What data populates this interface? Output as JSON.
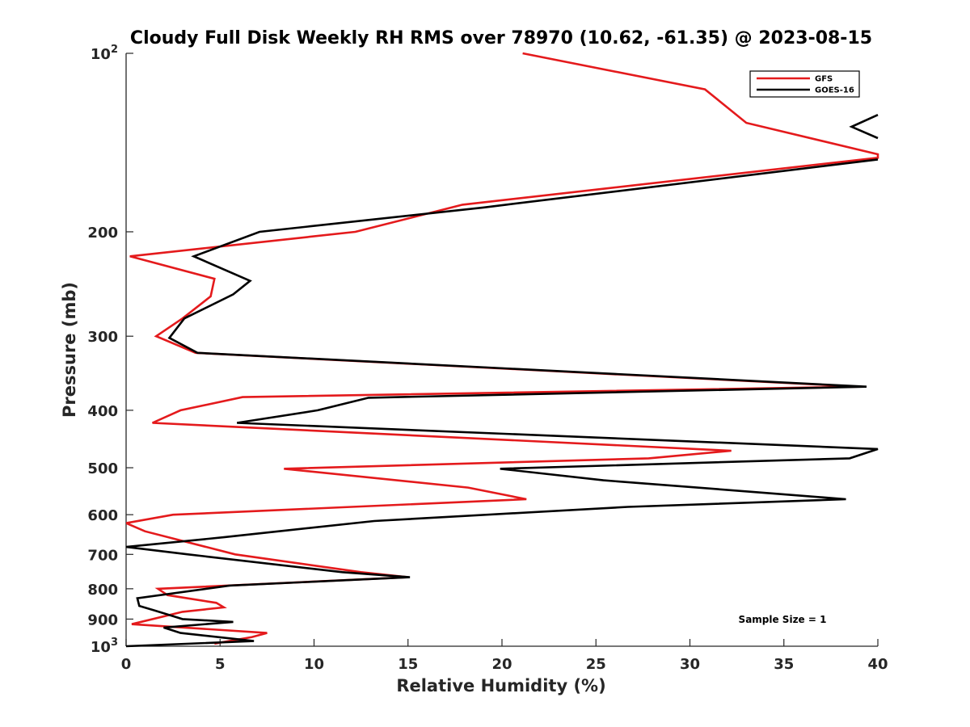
{
  "chart_data": {
    "type": "line",
    "title": "Cloudy Full Disk Weekly RH RMS over 78970 (10.62, -61.35) @ 2023-08-15",
    "xlabel": "Relative Humidity (%)",
    "ylabel": "Pressure (mb)",
    "xlim": [
      0,
      40
    ],
    "ylim": [
      100,
      1000
    ],
    "yscale": "log",
    "y_reversed": true,
    "xticks": [
      0,
      5,
      10,
      15,
      20,
      25,
      30,
      35,
      40
    ],
    "yticks": [
      {
        "value": 100,
        "base": "10",
        "exp": "2"
      },
      {
        "value": 200,
        "label": "200"
      },
      {
        "value": 300,
        "label": "300"
      },
      {
        "value": 400,
        "label": "400"
      },
      {
        "value": 500,
        "label": "500"
      },
      {
        "value": 600,
        "label": "600"
      },
      {
        "value": 700,
        "label": "700"
      },
      {
        "value": 800,
        "label": "800"
      },
      {
        "value": 900,
        "label": "900"
      },
      {
        "value": 1000,
        "base": "10",
        "exp": "3"
      }
    ],
    "grid": false,
    "legend_position": "top-right",
    "annotation": "Sample Size = 1",
    "series": [
      {
        "name": "GFS",
        "color": "#e41a1c",
        "points": [
          [
            21.1,
            100
          ],
          [
            30.8,
            115
          ],
          [
            33.0,
            131
          ],
          [
            40.0,
            148
          ],
          [
            40.0,
            150
          ],
          [
            17.9,
            180
          ],
          [
            12.2,
            200
          ],
          [
            0.2,
            220
          ],
          [
            4.7,
            240
          ],
          [
            4.5,
            257
          ],
          [
            3.0,
            280
          ],
          [
            1.6,
            300
          ],
          [
            3.7,
            320
          ],
          [
            39.0,
            365
          ],
          [
            6.2,
            380
          ],
          [
            2.9,
            400
          ],
          [
            1.4,
            420
          ],
          [
            32.2,
            468
          ],
          [
            27.8,
            482
          ],
          [
            8.4,
            502
          ],
          [
            18.2,
            540
          ],
          [
            21.3,
            565
          ],
          [
            2.5,
            600
          ],
          [
            0.0,
            620
          ],
          [
            1.0,
            640
          ],
          [
            5.8,
            700
          ],
          [
            12.5,
            750
          ],
          [
            15.0,
            765
          ],
          [
            1.7,
            800
          ],
          [
            2.2,
            820
          ],
          [
            4.8,
            845
          ],
          [
            5.2,
            860
          ],
          [
            3.0,
            875
          ],
          [
            0.3,
            918
          ],
          [
            7.5,
            950
          ],
          [
            6.7,
            965
          ],
          [
            4.7,
            990
          ]
        ]
      },
      {
        "name": "GOES-16",
        "color": "#000000",
        "points_upper": [
          [
            40.0,
            127
          ],
          [
            38.6,
            133
          ],
          [
            40.0,
            139
          ]
        ],
        "points": [
          [
            40.0,
            151
          ],
          [
            19.0,
            182
          ],
          [
            7.1,
            200
          ],
          [
            3.6,
            220
          ],
          [
            6.6,
            242
          ],
          [
            5.7,
            255
          ],
          [
            3.1,
            280
          ],
          [
            2.3,
            302
          ],
          [
            3.8,
            320
          ],
          [
            39.4,
            365
          ],
          [
            12.9,
            381
          ],
          [
            10.2,
            400
          ],
          [
            5.9,
            420
          ],
          [
            40.0,
            465
          ],
          [
            38.5,
            482
          ],
          [
            19.9,
            502
          ],
          [
            25.4,
            525
          ],
          [
            33.6,
            550
          ],
          [
            38.3,
            565
          ],
          [
            26.7,
            582
          ],
          [
            13.2,
            615
          ],
          [
            5.2,
            655
          ],
          [
            0.0,
            680
          ],
          [
            3.3,
            700
          ],
          [
            11.5,
            750
          ],
          [
            15.1,
            765
          ],
          [
            5.5,
            790
          ],
          [
            0.6,
            830
          ],
          [
            0.7,
            855
          ],
          [
            1.5,
            870
          ],
          [
            3.0,
            900
          ],
          [
            5.7,
            910
          ],
          [
            2.0,
            930
          ],
          [
            2.9,
            950
          ],
          [
            6.8,
            980
          ],
          [
            0.0,
            1000
          ]
        ]
      }
    ]
  }
}
